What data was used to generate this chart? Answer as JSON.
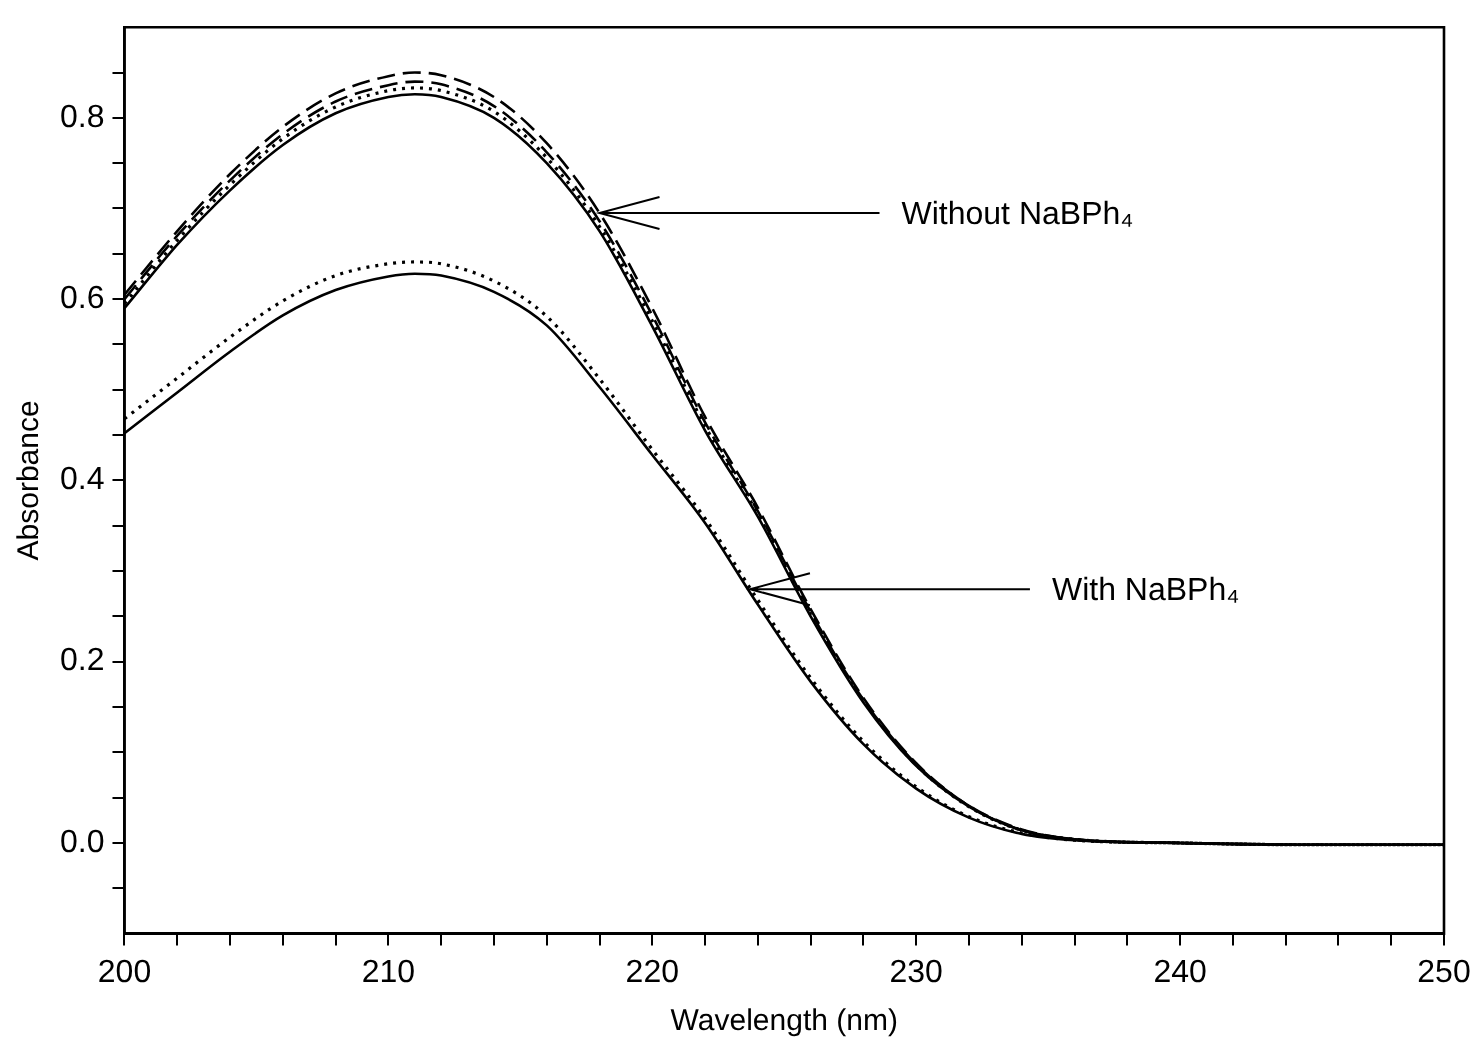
{
  "chart_data": {
    "type": "line",
    "xlabel": "Wavelength (nm)",
    "ylabel": "Absorbance",
    "x": [
      200,
      202,
      204,
      206,
      208,
      210,
      211,
      212,
      214,
      216,
      218,
      220,
      222,
      224,
      226,
      228,
      230,
      232,
      234,
      236,
      240,
      245,
      250
    ],
    "series": [
      {
        "color": "#000000",
        "line_style": "solid",
        "values": [
          0.59,
          0.66,
          0.72,
          0.77,
          0.805,
          0.823,
          0.826,
          0.823,
          0.8,
          0.75,
          0.675,
          0.57,
          0.455,
          0.36,
          0.25,
          0.155,
          0.085,
          0.04,
          0.014,
          0.004,
          0,
          -0.002,
          -0.002
        ]
      },
      {
        "color": "#000000",
        "line_style": "dashed",
        "values": [
          0.605,
          0.675,
          0.738,
          0.79,
          0.827,
          0.846,
          0.85,
          0.847,
          0.823,
          0.772,
          0.695,
          0.59,
          0.47,
          0.37,
          0.258,
          0.16,
          0.088,
          0.041,
          0.015,
          0.004,
          0,
          -0.002,
          -0.002
        ]
      },
      {
        "color": "#000000",
        "line_style": "dashed",
        "values": [
          0.6,
          0.67,
          0.731,
          0.782,
          0.818,
          0.836,
          0.84,
          0.837,
          0.813,
          0.762,
          0.686,
          0.582,
          0.464,
          0.366,
          0.255,
          0.158,
          0.087,
          0.041,
          0.014,
          0.004,
          0,
          -0.002,
          -0.002
        ]
      },
      {
        "color": "#000000",
        "line_style": "dotted",
        "values": [
          0.595,
          0.665,
          0.726,
          0.777,
          0.812,
          0.83,
          0.833,
          0.83,
          0.807,
          0.756,
          0.68,
          0.576,
          0.46,
          0.363,
          0.252,
          0.157,
          0.086,
          0.04,
          0.014,
          0.004,
          0,
          -0.002,
          -0.002
        ]
      },
      {
        "color": "#000000",
        "line_style": "solid",
        "values": [
          0.452,
          0.497,
          0.542,
          0.582,
          0.61,
          0.625,
          0.628,
          0.626,
          0.608,
          0.571,
          0.503,
          0.428,
          0.353,
          0.263,
          0.178,
          0.109,
          0.06,
          0.028,
          0.01,
          0.003,
          0,
          -0.002,
          -0.002
        ]
      },
      {
        "color": "#000000",
        "line_style": "dotted",
        "values": [
          0.468,
          0.513,
          0.558,
          0.598,
          0.626,
          0.639,
          0.641,
          0.639,
          0.62,
          0.581,
          0.512,
          0.434,
          0.358,
          0.268,
          0.182,
          0.112,
          0.062,
          0.029,
          0.011,
          0.003,
          0,
          -0.002,
          -0.002
        ]
      }
    ],
    "xlim": [
      200,
      250
    ],
    "xticks": [
      200,
      {
        "value": 202,
        "label": null
      },
      {
        "value": 204,
        "label": null
      },
      {
        "value": 206,
        "label": null
      },
      {
        "value": 208,
        "label": null
      },
      210,
      {
        "value": 212,
        "label": null
      },
      {
        "value": 214,
        "label": null
      },
      {
        "value": 216,
        "label": null
      },
      {
        "value": 218,
        "label": null
      },
      220,
      {
        "value": 222,
        "label": null
      },
      {
        "value": 224,
        "label": null
      },
      {
        "value": 226,
        "label": null
      },
      {
        "value": 228,
        "label": null
      },
      230,
      {
        "value": 232,
        "label": null
      },
      {
        "value": 234,
        "label": null
      },
      {
        "value": 236,
        "label": null
      },
      {
        "value": 238,
        "label": null
      },
      240,
      {
        "value": 242,
        "label": null
      },
      {
        "value": 244,
        "label": null
      },
      {
        "value": 246,
        "label": null
      },
      {
        "value": 248,
        "label": null
      },
      250
    ],
    "ylim": [
      -0.1,
      0.9
    ],
    "yticks": [
      {
        "value": -0.05,
        "label": null
      },
      {
        "value": 0,
        "label": "0.0"
      },
      {
        "value": 0.05,
        "label": null
      },
      {
        "value": 0.1,
        "label": null
      },
      {
        "value": 0.15,
        "label": null
      },
      {
        "value": 0.2,
        "label": "0.2"
      },
      {
        "value": 0.25,
        "label": null
      },
      {
        "value": 0.3,
        "label": null
      },
      {
        "value": 0.35,
        "label": null
      },
      {
        "value": 0.4,
        "label": "0.4"
      },
      {
        "value": 0.45,
        "label": null
      },
      {
        "value": 0.5,
        "label": null
      },
      {
        "value": 0.55,
        "label": null
      },
      {
        "value": 0.6,
        "label": "0.6"
      },
      {
        "value": 0.65,
        "label": null
      },
      {
        "value": 0.7,
        "label": null
      },
      {
        "value": 0.75,
        "label": null
      },
      {
        "value": 0.8,
        "label": "0.8"
      },
      {
        "value": 0.85,
        "label": null
      }
    ],
    "marker": "none",
    "grid": false,
    "legend": false,
    "annotations": [
      {
        "text": "Without NaBPh₄",
        "x": 218,
        "y": 0.695
      },
      {
        "text": "With NaBPh₄",
        "x": 223.7,
        "y": 0.28
      }
    ]
  }
}
